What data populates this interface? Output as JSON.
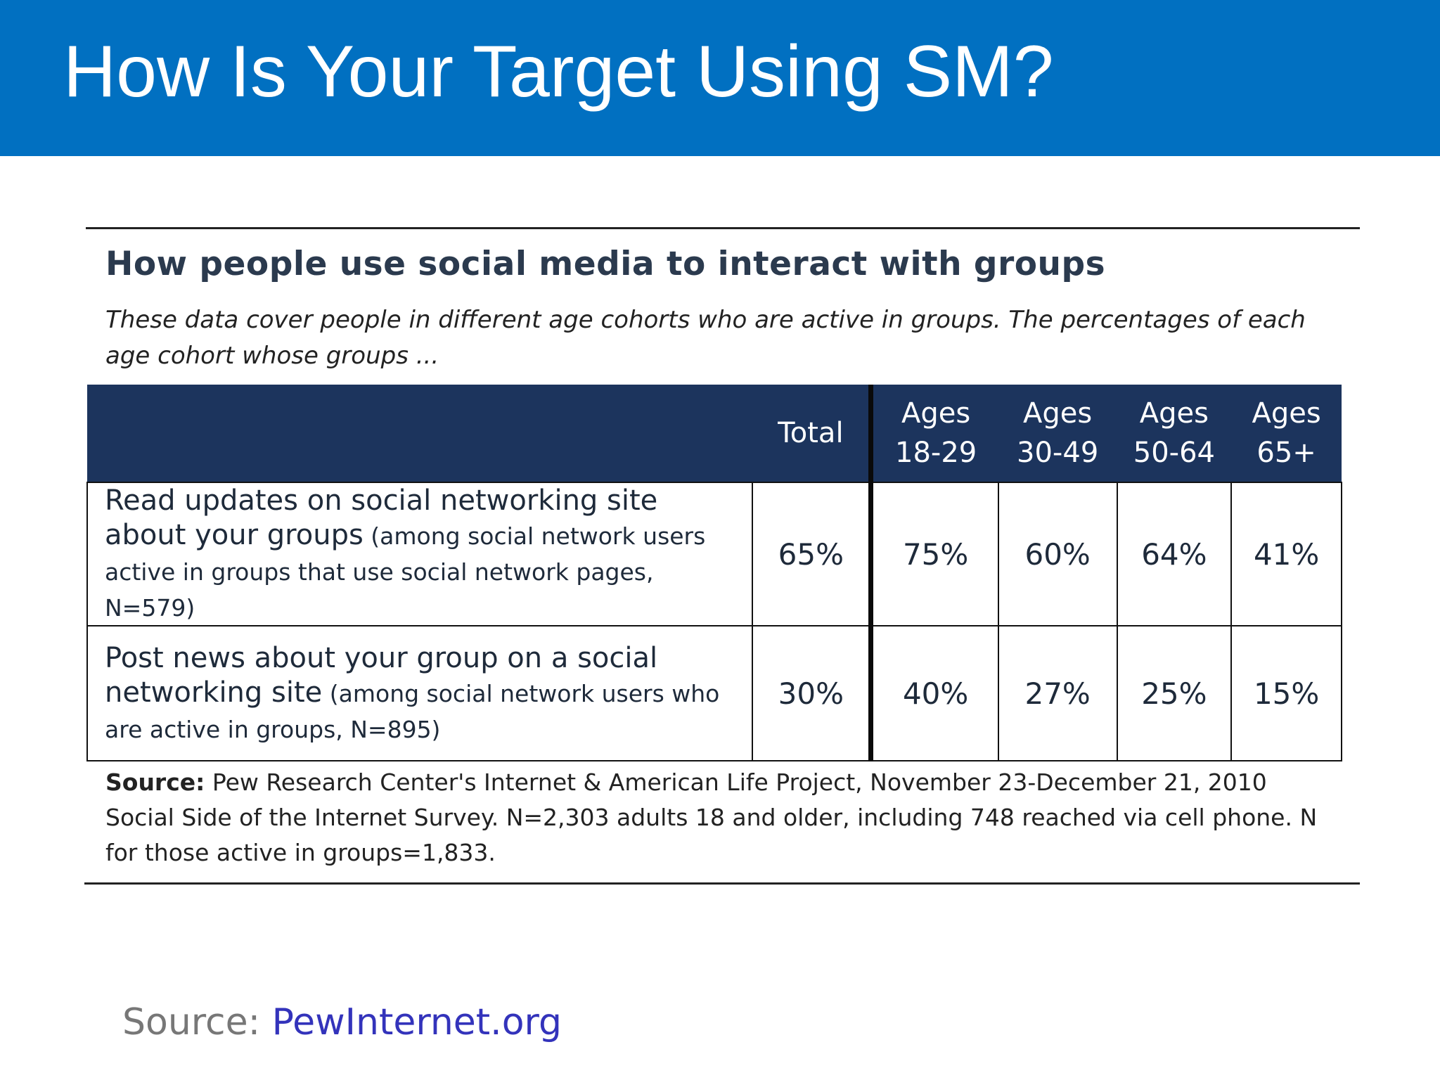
{
  "slide": {
    "title": "How Is Your Target Using SM?"
  },
  "figure": {
    "title": "How people use social media to interact with groups",
    "subtitle": "These data cover people in different age cohorts who are active in groups. The percentages of each age cohort whose groups ...",
    "columns": [
      {
        "line1": "",
        "line2": ""
      },
      {
        "line1": "Total",
        "line2": ""
      },
      {
        "line1": "Ages",
        "line2": "18-29"
      },
      {
        "line1": "Ages",
        "line2": "30-49"
      },
      {
        "line1": "Ages",
        "line2": "50-64"
      },
      {
        "line1": "Ages",
        "line2": "65+"
      }
    ],
    "rows": [
      {
        "label": "Read updates on social networking site about your groups",
        "note": " (among social network users active in groups that use social network pages, N=579)",
        "values": [
          "65%",
          "75%",
          "60%",
          "64%",
          "41%"
        ]
      },
      {
        "label": "Post news about your group on a social networking site",
        "note": " (among social network users who are active in groups, N=895)",
        "values": [
          "30%",
          "40%",
          "27%",
          "25%",
          "15%"
        ]
      }
    ],
    "source_label": "Source:",
    "source_text": "  Pew Research Center's Internet & American Life Project, November 23-December 21, 2010 Social Side of the Internet Survey. N=2,303 adults 18 and older, including 748 reached via cell phone.  N for those active in groups=1,833."
  },
  "footer": {
    "label": "Source: ",
    "link": "PewInternet.org",
    "link_color": "#3333bb"
  },
  "colors": {
    "header_bg": "#0170c1",
    "table_header_bg": "#1c345d"
  }
}
